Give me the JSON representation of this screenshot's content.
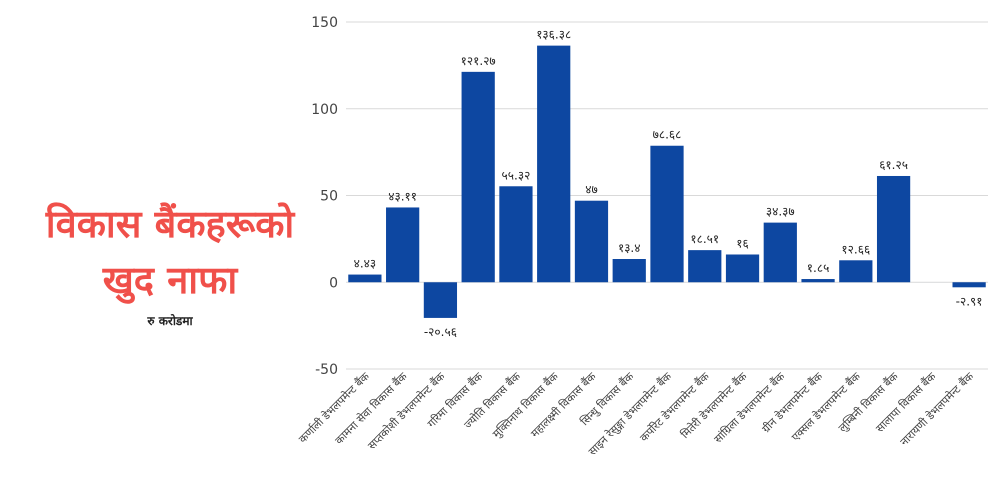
{
  "title_lines": [
    "विकास बैंकहरूको",
    "खुद नाफा"
  ],
  "subtitle": "रु करोडमा",
  "colors": {
    "title": "#f0504a",
    "bar": "#0d47a1",
    "grid": "#d9d9d9",
    "axis_text": "#444444",
    "label_text": "#222222"
  },
  "chart_data": {
    "type": "bar",
    "title": "",
    "xlabel": "",
    "ylabel": "",
    "ylim": [
      -50,
      150
    ],
    "yticks": [
      "-50",
      "0",
      "50",
      "100",
      "150"
    ],
    "grid": true,
    "legend": "none",
    "categories": [
      "कर्णाली डेभलपमेन्ट बैंक",
      "कामना सेवा विकास बैंक",
      "सप्तकोशी डेभलपमेन्ट बैंक",
      "गरिमा विकास बैंक",
      "ज्योति विकास बैंक",
      "मुक्तिनाथ विकास बैंक",
      "महालक्ष्मी विकास बैंक",
      "सिन्धु विकास बैंक",
      "साइन रेसुङ्गा डेभलपमेन्ट बैंक",
      "कर्पोरेट डेभलपमेन्ट बैंक",
      "मितेरी डेभलपमेन्ट बैंक",
      "सांग्रिला डेभलपमेन्ट बैंक",
      "ग्रीन डेभलपमेन्ट बैंक",
      "एक्सल डेभलपमेन्ट बैंक",
      "लुम्बिनी विकास बैंक",
      "सालापा विकास बैंक",
      "नारायणी डेभलपमेन्ट बैंक"
    ],
    "values": [
      4.43,
      43.11,
      -20.56,
      121.27,
      55.32,
      136.38,
      47,
      13.4,
      78.68,
      18.51,
      16,
      34.37,
      1.85,
      12.66,
      61.25,
      0,
      -2.91
    ],
    "data_labels": [
      "४.४३",
      "४३.११",
      "-२०.५६",
      "१२१.२७",
      "५५.३२",
      "१३६.३८",
      "४७",
      "१३.४",
      "७८.६८",
      "१८.५१",
      "१६",
      "३४.३७",
      "१.८५",
      "१२.६६",
      "६१.२५",
      "",
      "-२.९१"
    ]
  }
}
